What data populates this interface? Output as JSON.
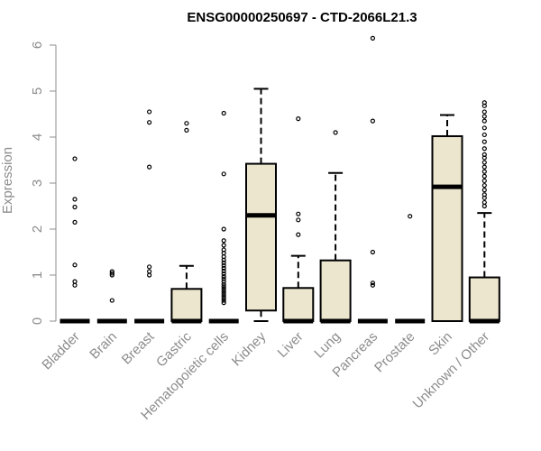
{
  "chart_data": {
    "type": "box",
    "title": "ENSG00000250697 - CTD-2066L21.3",
    "ylabel": "Expression",
    "xlabel": "",
    "ylim": [
      0,
      6.2
    ],
    "yticks": [
      0,
      1,
      2,
      3,
      4,
      5,
      6
    ],
    "grid": false,
    "colors": {
      "box_fill": "#ede6cf",
      "box_stroke": "#000000",
      "axis": "#8c8c8c"
    },
    "categories": [
      "Bladder",
      "Brain",
      "Breast",
      "Gastric",
      "Hematopoietic cells",
      "Kidney",
      "Liver",
      "Lung",
      "Pancreas",
      "Prostate",
      "Skin",
      "Unknown / Other"
    ],
    "boxes": [
      {
        "category": "Bladder",
        "q1": 0,
        "median": 0,
        "q3": 0,
        "whisker_low": 0,
        "whisker_high": 0,
        "outliers": [
          3.53,
          2.65,
          2.48,
          2.15,
          1.22,
          0.86,
          0.78
        ]
      },
      {
        "category": "Brain",
        "q1": 0,
        "median": 0,
        "q3": 0,
        "whisker_low": 0,
        "whisker_high": 0,
        "outliers": [
          1.08,
          1.04,
          1.0,
          0.45
        ]
      },
      {
        "category": "Breast",
        "q1": 0,
        "median": 0,
        "q3": 0,
        "whisker_low": 0,
        "whisker_high": 0,
        "outliers": [
          4.55,
          4.32,
          3.35,
          1.18,
          1.08,
          1.0
        ]
      },
      {
        "category": "Gastric",
        "q1": 0,
        "median": 0,
        "q3": 0.7,
        "whisker_low": 0,
        "whisker_high": 1.2,
        "outliers": [
          4.3,
          4.15
        ]
      },
      {
        "category": "Hematopoietic cells",
        "q1": 0,
        "median": 0,
        "q3": 0,
        "whisker_low": 0,
        "whisker_high": 0,
        "outliers": [
          4.52,
          3.2,
          2.0,
          1.75,
          1.65,
          1.55,
          1.48,
          1.4,
          1.33,
          1.27,
          1.21,
          1.15,
          1.09,
          1.03,
          0.97,
          0.92,
          0.86,
          0.8,
          0.75,
          0.7,
          0.65,
          0.6,
          0.55,
          0.5,
          0.45,
          0.4
        ]
      },
      {
        "category": "Kidney",
        "q1": 0.23,
        "median": 2.3,
        "q3": 3.42,
        "whisker_low": 0,
        "whisker_high": 5.05,
        "outliers": []
      },
      {
        "category": "Liver",
        "q1": 0,
        "median": 0,
        "q3": 0.72,
        "whisker_low": 0,
        "whisker_high": 1.42,
        "outliers": [
          4.4,
          2.33,
          2.2,
          1.88
        ]
      },
      {
        "category": "Lung",
        "q1": 0,
        "median": 0,
        "q3": 1.32,
        "whisker_low": 0,
        "whisker_high": 3.22,
        "outliers": [
          4.1
        ]
      },
      {
        "category": "Pancreas",
        "q1": 0,
        "median": 0,
        "q3": 0,
        "whisker_low": 0,
        "whisker_high": 0,
        "outliers": [
          6.15,
          4.35,
          1.5,
          0.83,
          0.78
        ]
      },
      {
        "category": "Prostate",
        "q1": 0,
        "median": 0,
        "q3": 0,
        "whisker_low": 0,
        "whisker_high": 0,
        "outliers": [
          2.28
        ]
      },
      {
        "category": "Skin",
        "q1": 0,
        "median": 2.92,
        "q3": 4.02,
        "whisker_low": 0,
        "whisker_high": 4.48,
        "outliers": []
      },
      {
        "category": "Unknown / Other",
        "q1": 0,
        "median": 0,
        "q3": 0.95,
        "whisker_low": 0,
        "whisker_high": 2.35,
        "outliers": [
          4.75,
          4.68,
          4.55,
          4.45,
          4.35,
          4.2,
          4.05,
          3.9,
          3.75,
          3.62,
          3.55,
          3.45,
          3.35,
          3.25,
          3.15,
          3.05,
          2.95,
          2.85,
          2.75,
          2.68,
          2.58,
          2.5
        ]
      }
    ]
  }
}
